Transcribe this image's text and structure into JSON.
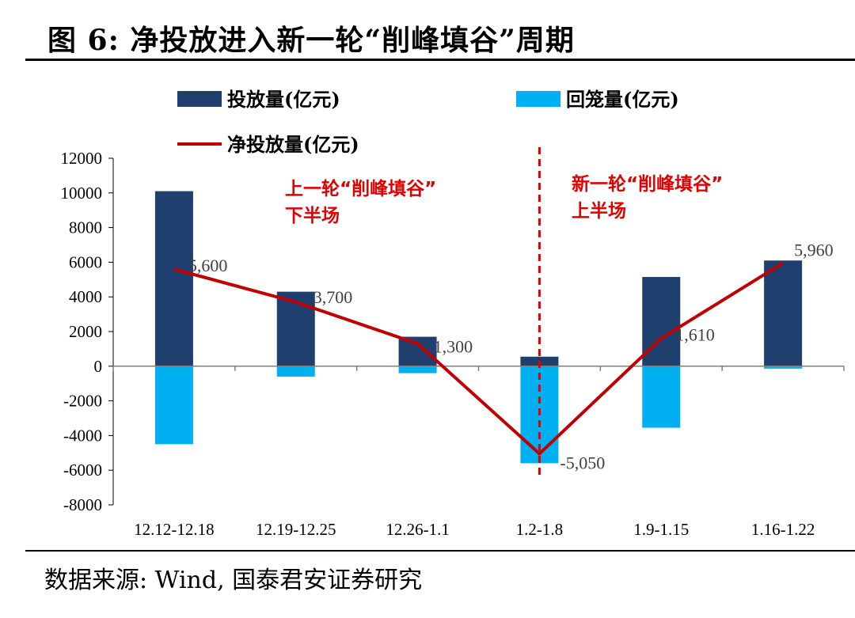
{
  "figure_title": "图 6: 净投放进入新一轮“削峰填谷”周期",
  "source": "数据来源: Wind, 国泰君安证券研究",
  "colors": {
    "injection": "#1f3f6e",
    "withdrawal": "#00b0f0",
    "net": "#c00000",
    "annotation": "#e00000"
  },
  "chart_data": {
    "type": "bar",
    "title": "",
    "xlabel": "",
    "ylabel": "",
    "ylim": [
      -8000,
      12000
    ],
    "yticks": [
      12000,
      10000,
      8000,
      6000,
      4000,
      2000,
      0,
      -2000,
      -4000,
      -6000,
      -8000
    ],
    "categories": [
      "12.12-12.18",
      "12.19-12.25",
      "12.26-1.1",
      "1.2-1.8",
      "1.9-1.15",
      "1.16-1.22"
    ],
    "series": [
      {
        "name": "投放量(亿元)",
        "kind": "bar",
        "values": [
          10100,
          4300,
          1700,
          550,
          5150,
          6100
        ]
      },
      {
        "name": "回笼量(亿元)",
        "kind": "bar",
        "values": [
          -4500,
          -600,
          -400,
          -5600,
          -3550,
          -140
        ]
      },
      {
        "name": "净投放量(亿元)",
        "kind": "line",
        "values": [
          5600,
          3700,
          1300,
          -5050,
          1610,
          5960
        ]
      }
    ],
    "data_labels": [
      "5,600",
      "3,700",
      "1,300",
      "-5,050",
      "1,610",
      "5,960"
    ],
    "legend_position": "top",
    "annotations": [
      {
        "lines": [
          "上一轮“削峰填谷”",
          "下半场"
        ]
      },
      {
        "lines": [
          "新一轮“削峰填谷”",
          "上半场"
        ]
      }
    ],
    "divider_between": [
      "1.2-1.8"
    ]
  }
}
